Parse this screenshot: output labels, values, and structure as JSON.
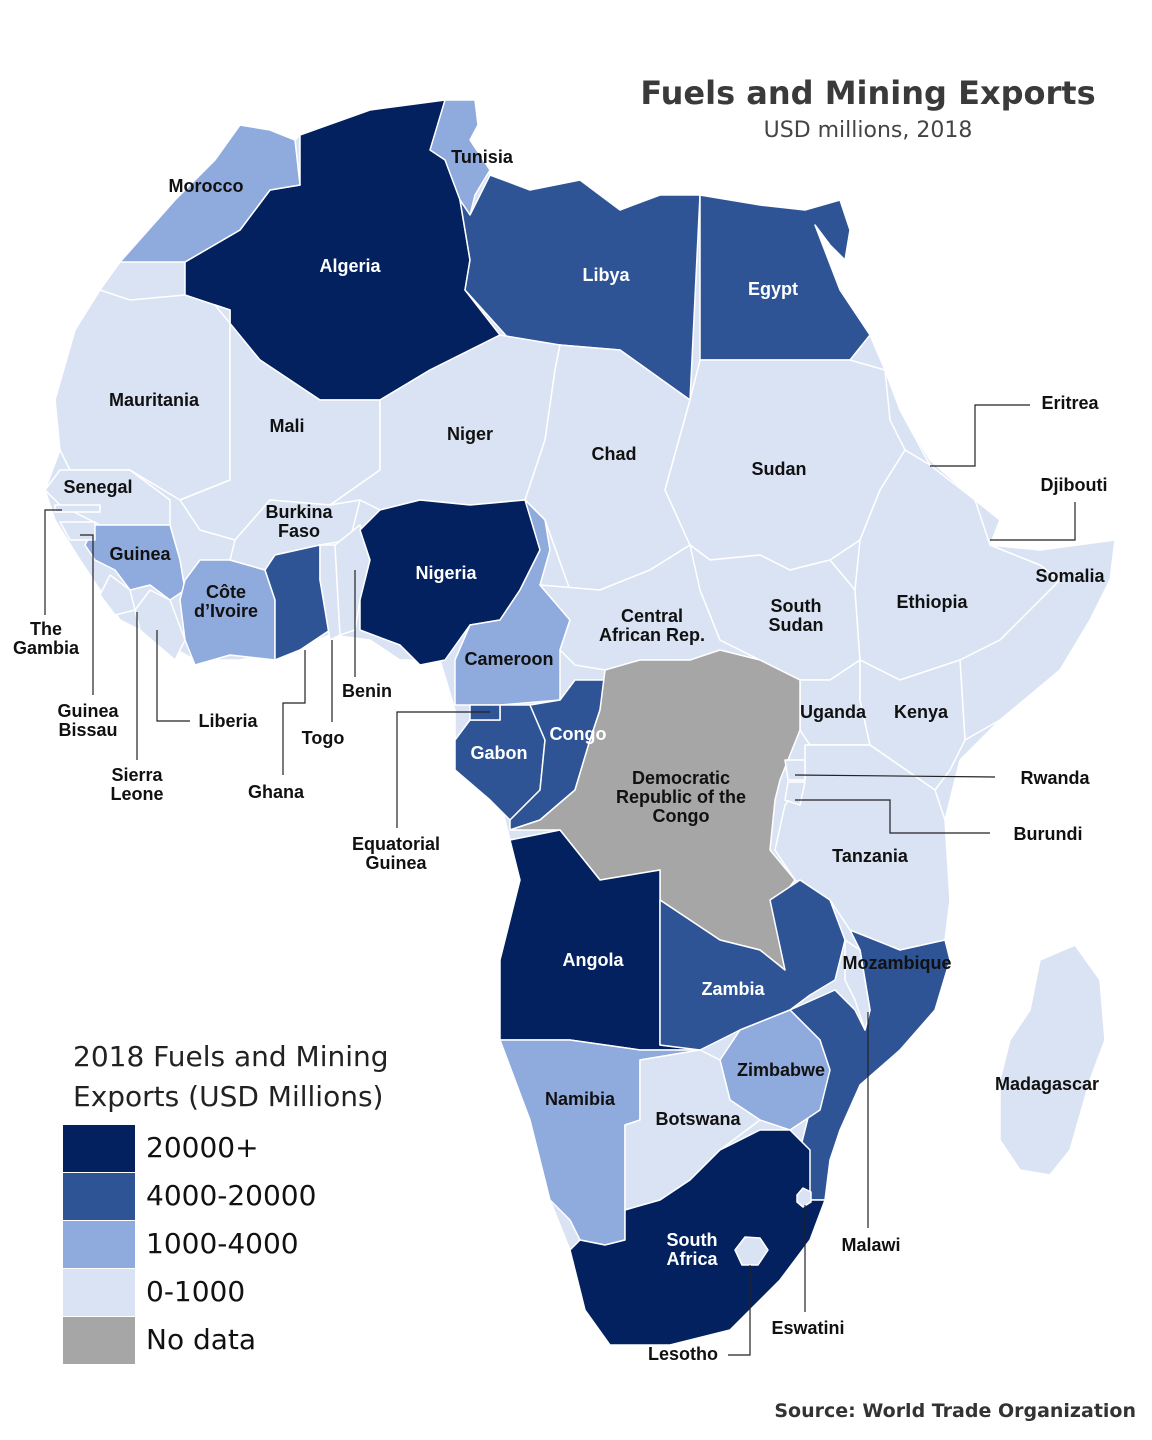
{
  "title": "Fuels and Mining Exports",
  "subtitle": "USD millions, 2018",
  "source": "Source: World Trade Organization",
  "legend": {
    "title": "2018 Fuels and Mining Exports (USD Millions)",
    "classes": [
      {
        "label": "20000+",
        "color": "#03215e"
      },
      {
        "label": "4000-20000",
        "color": "#2e5496"
      },
      {
        "label": "1000-4000",
        "color": "#8faadc"
      },
      {
        "label": "0-1000",
        "color": "#dae3f3"
      },
      {
        "label": "No data",
        "color": "#a6a6a6"
      }
    ]
  },
  "countries": [
    {
      "label": [
        "Algeria"
      ],
      "range": "20000+"
    },
    {
      "label": [
        "Tunisia"
      ],
      "range": "1000-4000"
    },
    {
      "label": [
        "Morocco"
      ],
      "range": "1000-4000"
    },
    {
      "label": [
        "Libya"
      ],
      "range": "4000-20000"
    },
    {
      "label": [
        "Egypt"
      ],
      "range": "4000-20000"
    },
    {
      "label": [
        "Mauritania"
      ],
      "range": "0-1000"
    },
    {
      "label": [
        "Mali"
      ],
      "range": "0-1000"
    },
    {
      "label": [
        "Niger"
      ],
      "range": "0-1000"
    },
    {
      "label": [
        "Chad"
      ],
      "range": "0-1000"
    },
    {
      "label": [
        "Sudan"
      ],
      "range": "0-1000"
    },
    {
      "label": [
        "Eritrea"
      ],
      "range": "0-1000"
    },
    {
      "label": [
        "Djibouti"
      ],
      "range": "0-1000"
    },
    {
      "label": [
        "Senegal"
      ],
      "range": "0-1000"
    },
    {
      "label": [
        "The",
        "Gambia"
      ],
      "range": "0-1000"
    },
    {
      "label": [
        "Guinea",
        "Bissau"
      ],
      "range": "0-1000"
    },
    {
      "label": [
        "Guinea"
      ],
      "range": "1000-4000"
    },
    {
      "label": [
        "Sierra",
        "Leone"
      ],
      "range": "0-1000"
    },
    {
      "label": [
        "Liberia"
      ],
      "range": "0-1000"
    },
    {
      "label": [
        "Côte",
        "d’Ivoire"
      ],
      "range": "1000-4000"
    },
    {
      "label": [
        "Burkina",
        "Faso"
      ],
      "range": "0-1000"
    },
    {
      "label": [
        "Ghana"
      ],
      "range": "4000-20000"
    },
    {
      "label": [
        "Togo"
      ],
      "range": "0-1000"
    },
    {
      "label": [
        "Benin"
      ],
      "range": "0-1000"
    },
    {
      "label": [
        "Nigeria"
      ],
      "range": "20000+"
    },
    {
      "label": [
        "Cameroon"
      ],
      "range": "1000-4000"
    },
    {
      "label": [
        "Central",
        "African Rep."
      ],
      "range": "0-1000"
    },
    {
      "label": [
        "South",
        "Sudan"
      ],
      "range": "0-1000"
    },
    {
      "label": [
        "Ethiopia"
      ],
      "range": "0-1000"
    },
    {
      "label": [
        "Somalia"
      ],
      "range": "0-1000"
    },
    {
      "label": [
        "Uganda"
      ],
      "range": "0-1000"
    },
    {
      "label": [
        "Kenya"
      ],
      "range": "0-1000"
    },
    {
      "label": [
        "Rwanda"
      ],
      "range": "0-1000"
    },
    {
      "label": [
        "Burundi"
      ],
      "range": "0-1000"
    },
    {
      "label": [
        "Equatorial",
        "Guinea"
      ],
      "range": "4000-20000"
    },
    {
      "label": [
        "Gabon"
      ],
      "range": "4000-20000"
    },
    {
      "label": [
        "Congo"
      ],
      "range": "4000-20000"
    },
    {
      "label": [
        "Democratic",
        "Republic of the",
        "Congo"
      ],
      "range": "No data"
    },
    {
      "label": [
        "Tanzania"
      ],
      "range": "0-1000"
    },
    {
      "label": [
        "Angola"
      ],
      "range": "20000+"
    },
    {
      "label": [
        "Zambia"
      ],
      "range": "4000-20000"
    },
    {
      "label": [
        "Mozambique"
      ],
      "range": "4000-20000"
    },
    {
      "label": [
        "Malawi"
      ],
      "range": "0-1000"
    },
    {
      "label": [
        "Zimbabwe"
      ],
      "range": "1000-4000"
    },
    {
      "label": [
        "Namibia"
      ],
      "range": "1000-4000"
    },
    {
      "label": [
        "Botswana"
      ],
      "range": "0-1000"
    },
    {
      "label": [
        "South",
        "Africa"
      ],
      "range": "20000+"
    },
    {
      "label": [
        "Eswatini"
      ],
      "range": "0-1000"
    },
    {
      "label": [
        "Lesotho"
      ],
      "range": "0-1000"
    },
    {
      "label": [
        "Madagascar"
      ],
      "range": "0-1000"
    }
  ]
}
